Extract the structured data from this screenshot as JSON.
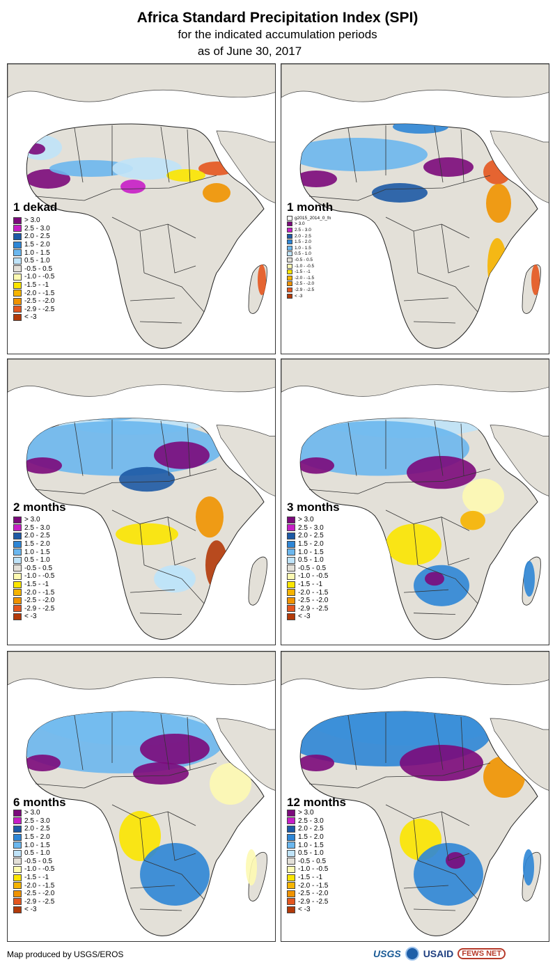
{
  "header": {
    "title": "Africa Standard Precipitation Index (SPI)",
    "subtitle": "for the indicated accumulation periods",
    "date_line": "as of June 30, 2017"
  },
  "legend_default": [
    {
      "label": "> 3.0",
      "color": "#7b0a7b"
    },
    {
      "label": "2.5 - 3.0",
      "color": "#c61ec6"
    },
    {
      "label": "2.0 - 2.5",
      "color": "#1d5aa5"
    },
    {
      "label": "1.5 - 2.0",
      "color": "#2e86d6"
    },
    {
      "label": "1.0 - 1.5",
      "color": "#6bb7ee"
    },
    {
      "label": "0.5 - 1.0",
      "color": "#bfe3f8"
    },
    {
      "label": "-0.5 - 0.5",
      "color": "#e3e0d8"
    },
    {
      "label": "-1.0 - -0.5",
      "color": "#fdfab2"
    },
    {
      "label": "-1.5 - -1",
      "color": "#fbe500"
    },
    {
      "label": "-2.0 - -1.5",
      "color": "#f6b400"
    },
    {
      "label": "-2.5 - -2.0",
      "color": "#f09300"
    },
    {
      "label": "-2.9 - -2.5",
      "color": "#e4561f"
    },
    {
      "label": "< -3",
      "color": "#b23a0a"
    }
  ],
  "legend_1month": {
    "note": "g2015_2014_0_fn",
    "items": [
      {
        "label": "> 3.0",
        "color": "#7b0a7b"
      },
      {
        "label": "2.5 - 3.0",
        "color": "#c61ec6"
      },
      {
        "label": "2.0 - 2.5",
        "color": "#1d5aa5"
      },
      {
        "label": "1.5 - 2.0",
        "color": "#2e86d6"
      },
      {
        "label": "1.0 - 1.5",
        "color": "#6bb7ee"
      },
      {
        "label": "0.5 - 1.0",
        "color": "#bfe3f8"
      },
      {
        "label": "-0.5 - 0.5",
        "color": "#e3e0d8"
      },
      {
        "label": "-1.0 - -0.5",
        "color": "#fdfab2"
      },
      {
        "label": "-1.5 - -1",
        "color": "#fbe500"
      },
      {
        "label": "-2.0 - -1.5",
        "color": "#f6b400"
      },
      {
        "label": "-2.5 - -2.0",
        "color": "#f09300"
      },
      {
        "label": "-2.9 - -2.5",
        "color": "#e4561f"
      },
      {
        "label": "< -3",
        "color": "#b23a0a"
      }
    ]
  },
  "panels": [
    {
      "label": "1 dekad"
    },
    {
      "label": "1 month"
    },
    {
      "label": "2 months"
    },
    {
      "label": "3 months"
    },
    {
      "label": "6 months"
    },
    {
      "label": "12 months"
    }
  ],
  "footer": {
    "credit": "Map produced by USGS/EROS",
    "logo_usgs": "USGS",
    "logo_usaid": "USAID",
    "logo_fews": "FEWS NET"
  }
}
